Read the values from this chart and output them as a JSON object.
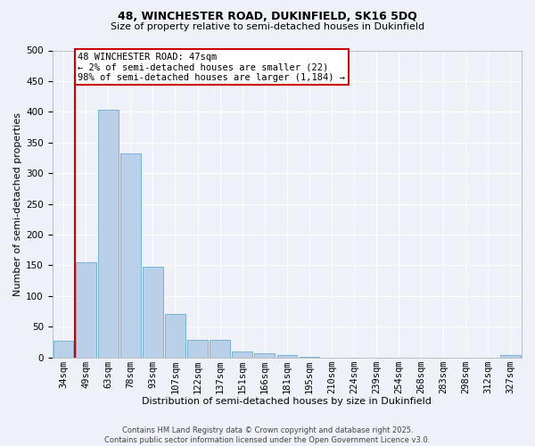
{
  "title1": "48, WINCHESTER ROAD, DUKINFIELD, SK16 5DQ",
  "title2": "Size of property relative to semi-detached houses in Dukinfield",
  "xlabel": "Distribution of semi-detached houses by size in Dukinfield",
  "ylabel": "Number of semi-detached properties",
  "footnote": "Contains HM Land Registry data © Crown copyright and database right 2025.\nContains public sector information licensed under the Open Government Licence v3.0.",
  "bar_labels": [
    "34sqm",
    "49sqm",
    "63sqm",
    "78sqm",
    "93sqm",
    "107sqm",
    "122sqm",
    "137sqm",
    "151sqm",
    "166sqm",
    "181sqm",
    "195sqm",
    "210sqm",
    "224sqm",
    "239sqm",
    "254sqm",
    "268sqm",
    "283sqm",
    "298sqm",
    "312sqm",
    "327sqm"
  ],
  "bar_values": [
    27,
    155,
    404,
    332,
    148,
    71,
    28,
    28,
    10,
    7,
    4,
    1,
    0,
    0,
    0,
    0,
    0,
    0,
    0,
    0,
    3
  ],
  "bar_color": "#bad0e8",
  "bar_edge_color": "#6aaad4",
  "highlight_color": "#cc0000",
  "annotation_text": "48 WINCHESTER ROAD: 47sqm\n← 2% of semi-detached houses are smaller (22)\n98% of semi-detached houses are larger (1,184) →",
  "annotation_box_color": "#ffffff",
  "annotation_box_edge": "#cc0000",
  "ylim": [
    0,
    500
  ],
  "yticks": [
    0,
    50,
    100,
    150,
    200,
    250,
    300,
    350,
    400,
    450,
    500
  ],
  "background_color": "#eef2f8",
  "plot_bg_color": "#eef2f8",
  "grid_color": "#ffffff",
  "title1_fontsize": 9,
  "title2_fontsize": 8,
  "xlabel_fontsize": 8,
  "ylabel_fontsize": 8,
  "tick_fontsize": 7.5,
  "annot_fontsize": 7.5,
  "footnote_fontsize": 6
}
